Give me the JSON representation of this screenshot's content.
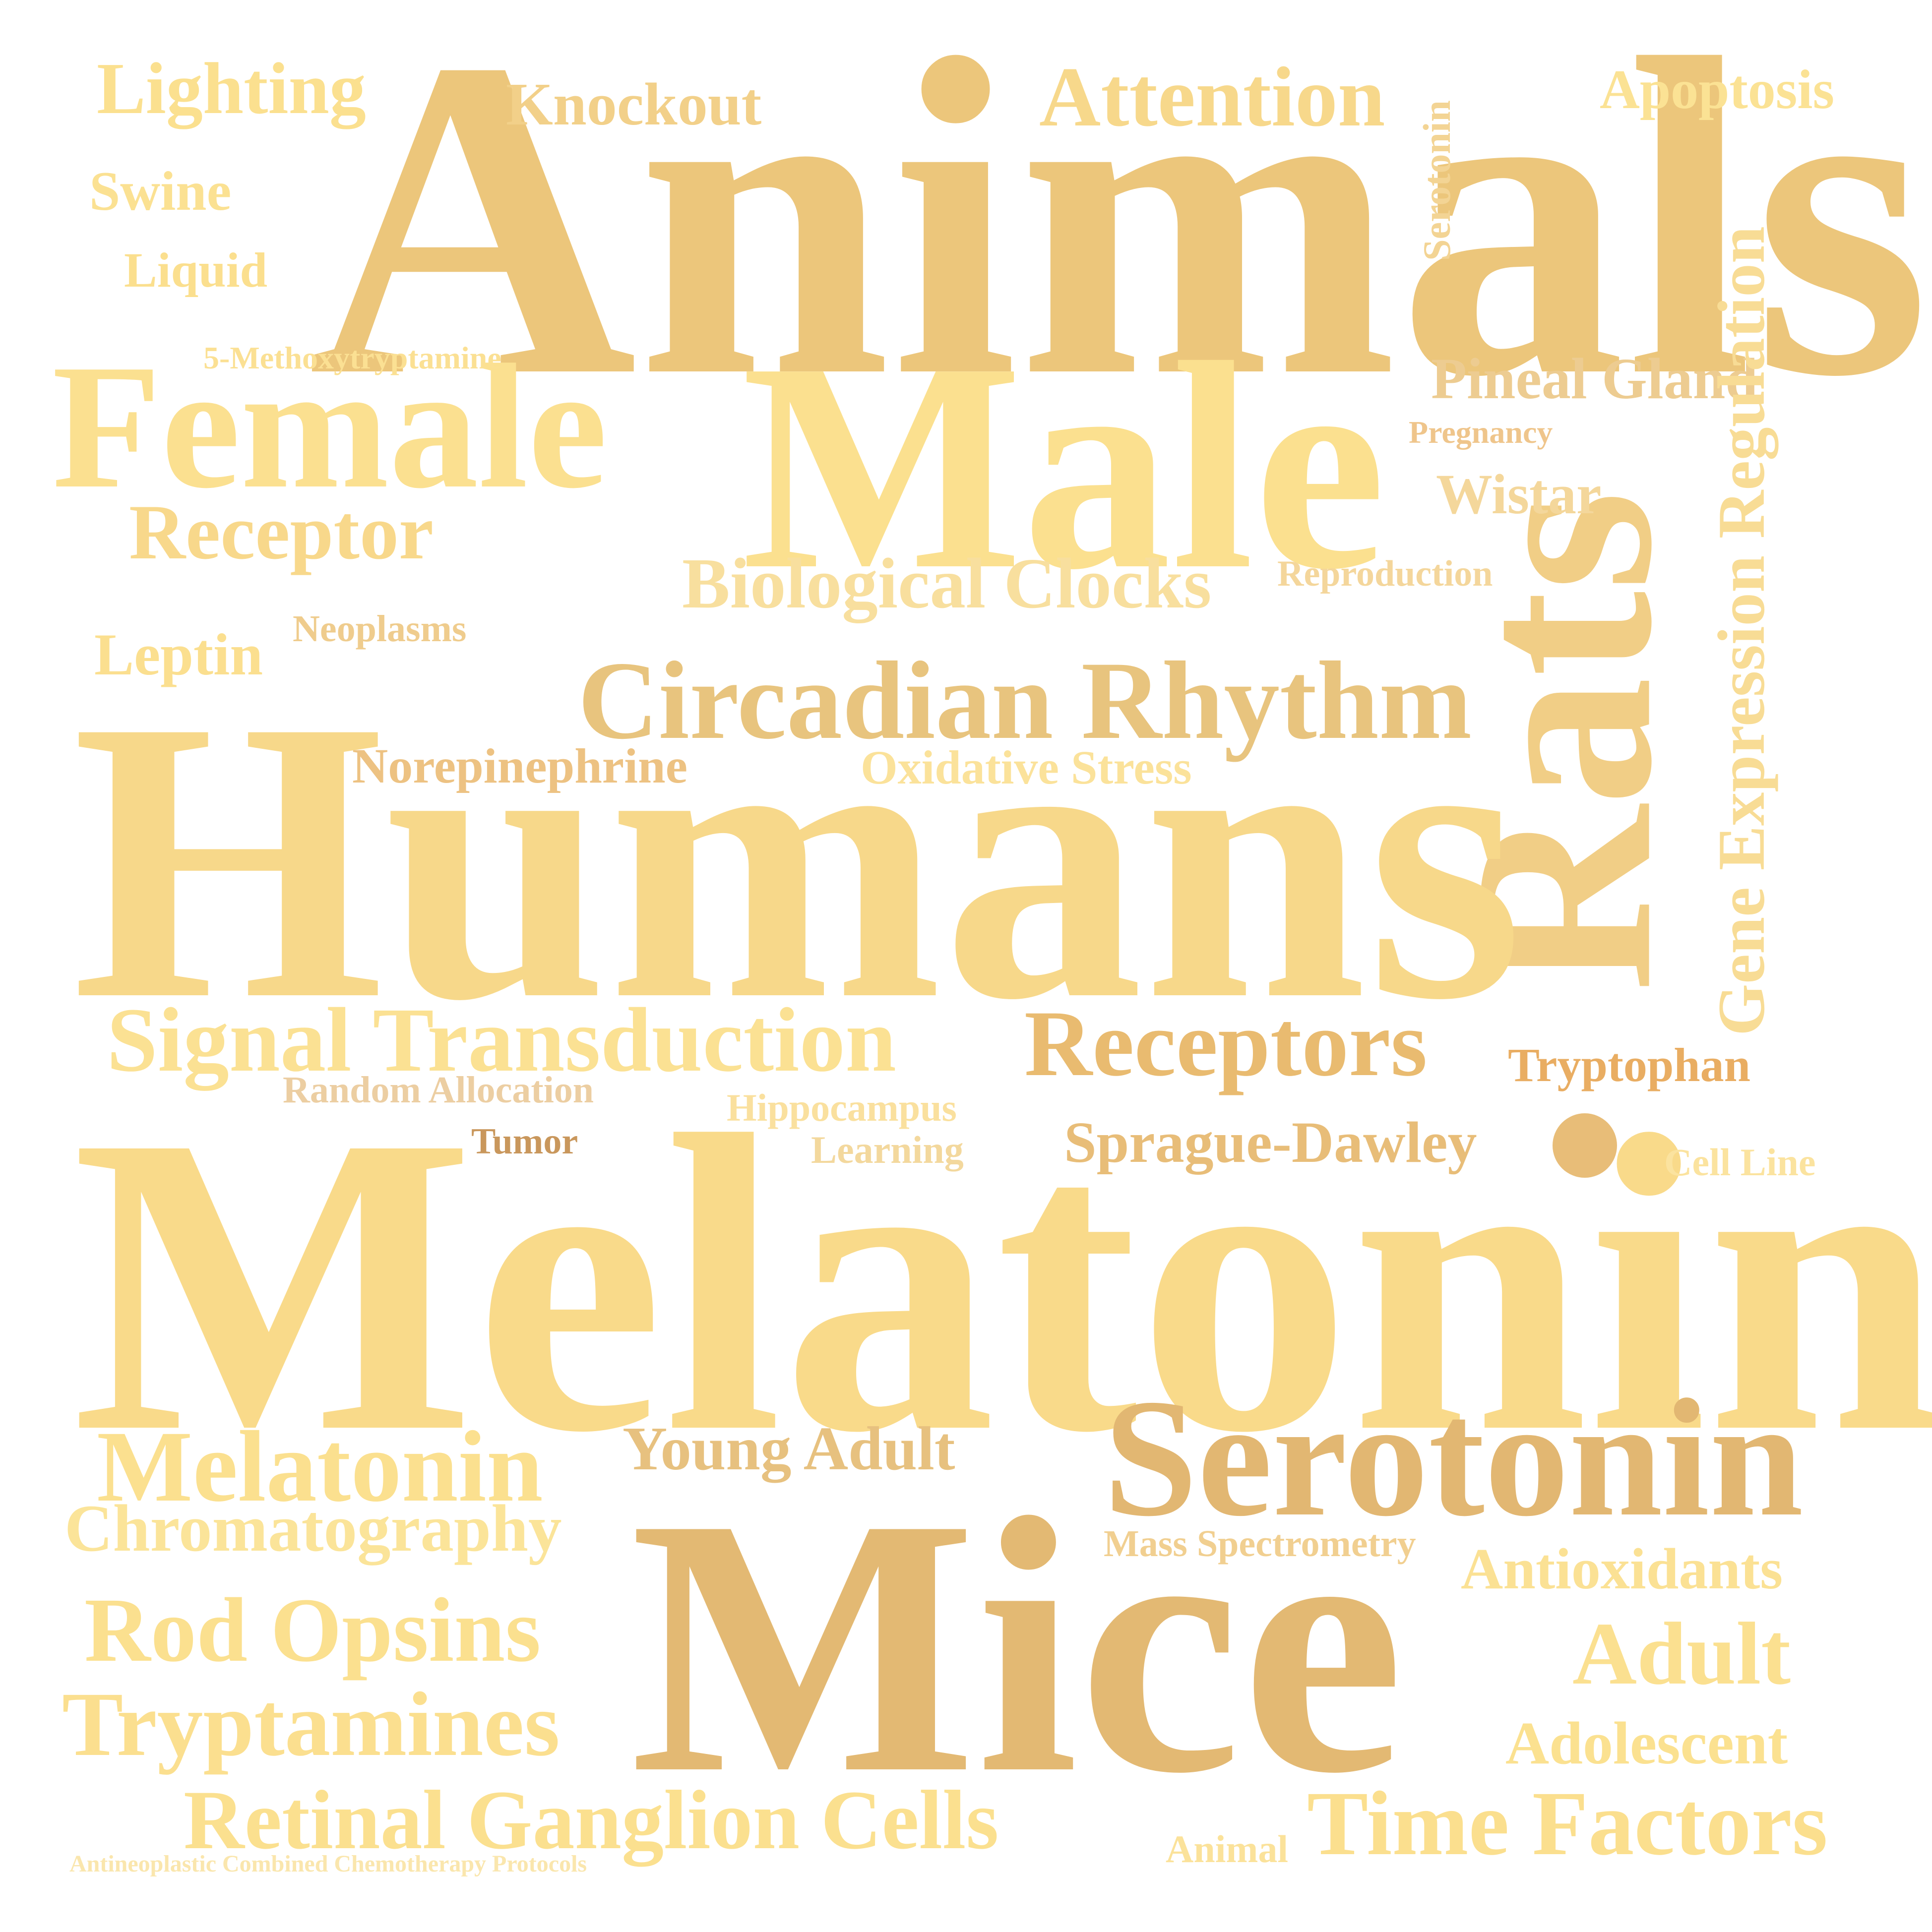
{
  "words": [
    {
      "text": "Animals",
      "color": "#ecc67b"
    },
    {
      "text": "Male",
      "color": "#fbe08f"
    },
    {
      "text": "Female",
      "color": "#fbe090"
    },
    {
      "text": "Rats",
      "color": "#f1ce86"
    },
    {
      "text": "Humans",
      "color": "#f7d88a"
    },
    {
      "text": "Melatonin",
      "color": "#f9da8a"
    },
    {
      "text": "Mice",
      "color": "#e3b973"
    },
    {
      "text": "Serotonin",
      "color": "#e2b772"
    },
    {
      "text": "Circadian Rhythm",
      "color": "#e8c47e"
    },
    {
      "text": "Lighting",
      "color": "#fbe08f"
    },
    {
      "text": "Knockout",
      "color": "#f2d089"
    },
    {
      "text": "Attention",
      "color": "#f7d88b"
    },
    {
      "text": "Apoptosis",
      "color": "#fbe294"
    },
    {
      "text": "Serotonin",
      "color": "#f3d494"
    },
    {
      "text": "Swine",
      "color": "#fbe192"
    },
    {
      "text": "Liquid",
      "color": "#fbdf8e"
    },
    {
      "text": "5-Methoxytryptamine",
      "color": "#fbe093"
    },
    {
      "text": "Pineal Gland",
      "color": "#edcc91"
    },
    {
      "text": "Pregnancy",
      "color": "#efc58b"
    },
    {
      "text": "Wistar",
      "color": "#f4d79b"
    },
    {
      "text": "Gene Expression Regulation",
      "color": "#f8dc95"
    },
    {
      "text": "Receptor",
      "color": "#f8d88b"
    },
    {
      "text": "Biological Clocks",
      "color": "#f8df9e"
    },
    {
      "text": "Reproduction",
      "color": "#f4d69b"
    },
    {
      "text": "Leptin",
      "color": "#fbdf8f"
    },
    {
      "text": "Neoplasms",
      "color": "#efcc8d"
    },
    {
      "text": "Norepinephrine",
      "color": "#edc282"
    },
    {
      "text": "Oxidative Stress",
      "color": "#fbe29a"
    },
    {
      "text": "Signal Transduction",
      "color": "#fbe193"
    },
    {
      "text": "Receptors",
      "color": "#e9bb70"
    },
    {
      "text": "Tryptophan",
      "color": "#e9ad62"
    },
    {
      "text": "Random Allocation",
      "color": "#eccea2"
    },
    {
      "text": "Hippocampus",
      "color": "#fae09e"
    },
    {
      "text": "Learning",
      "color": "#f3d89d"
    },
    {
      "text": "Tumor",
      "color": "#c9975c"
    },
    {
      "text": "Sprague-Dawley",
      "color": "#e8bd78"
    },
    {
      "text": "Cell Line",
      "color": "#fbe39f"
    },
    {
      "text": "Melatonin",
      "color": "#fbe08f"
    },
    {
      "text": "Chromatography",
      "color": "#fbe499"
    },
    {
      "text": "Young Adult",
      "color": "#e7c17f"
    },
    {
      "text": "Mass Spectrometry",
      "color": "#f1cf90"
    },
    {
      "text": "Antioxidants",
      "color": "#fbe194"
    },
    {
      "text": "Rod Opsins",
      "color": "#fbe08f"
    },
    {
      "text": "Adult",
      "color": "#fbe090"
    },
    {
      "text": "Tryptamines",
      "color": "#fbdf8f"
    },
    {
      "text": "Adolescent",
      "color": "#fbe190"
    },
    {
      "text": "Retinal Ganglion Cells",
      "color": "#fbe08f"
    },
    {
      "text": "Animal",
      "color": "#fbe29a"
    },
    {
      "text": "Time Factors",
      "color": "#fbdf8e"
    },
    {
      "text": "Antineoplastic Combined Chemotherapy Protocols",
      "color": "#fae6ad"
    }
  ]
}
